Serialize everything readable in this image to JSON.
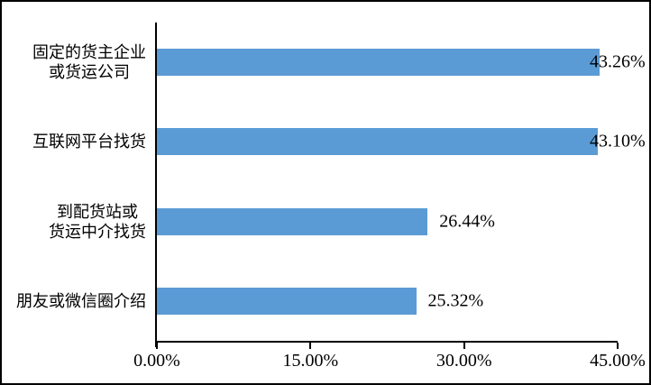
{
  "figure": {
    "background": "#ffffff",
    "border_color": "#000000"
  },
  "chart_data": {
    "type": "bar",
    "orientation": "horizontal",
    "title": "",
    "xlabel": "",
    "ylabel": "",
    "xlim": [
      0,
      45
    ],
    "grid": false,
    "legend": null,
    "bar_color": "#5B9BD5",
    "categories": [
      [
        "固定的货主企业",
        "或货运公司"
      ],
      [
        "互联网平台找货"
      ],
      [
        "到配货站或",
        "货运中介找货"
      ],
      [
        "朋友或微信圈介绍"
      ]
    ],
    "values": [
      43.26,
      43.1,
      26.44,
      25.32
    ],
    "value_labels": [
      "43.26%",
      "43.10%",
      "26.44%",
      "25.32%"
    ],
    "x_tick_values": [
      0,
      15,
      30,
      45
    ],
    "x_tick_labels": [
      "0.00%",
      "15.00%",
      "30.00%",
      "45.00%"
    ]
  }
}
